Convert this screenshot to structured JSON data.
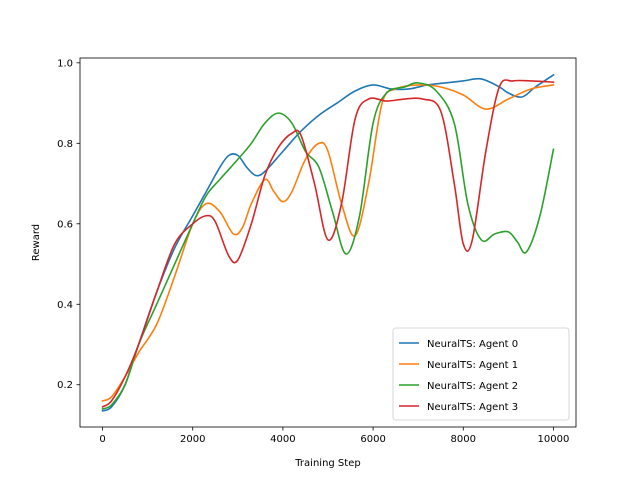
{
  "chart_data": {
    "type": "line",
    "title": "",
    "xlabel": "Training Step",
    "ylabel": "Reward",
    "xlim": [
      -500,
      10500
    ],
    "ylim": [
      0.095,
      1.012
    ],
    "xticks": [
      0,
      2000,
      4000,
      6000,
      8000,
      10000
    ],
    "xtick_labels": [
      "0",
      "2000",
      "4000",
      "6000",
      "8000",
      "10000"
    ],
    "yticks": [
      0.2,
      0.4,
      0.6,
      0.8,
      1.0
    ],
    "ytick_labels": [
      "0.2",
      "0.4",
      "0.6",
      "0.8",
      "1.0"
    ],
    "grid": false,
    "legend_position": "lower-right",
    "series": [
      {
        "name": "NeuralTS: Agent 0",
        "color": "#1f77b4",
        "x": [
          0,
          200,
          500,
          800,
          1200,
          1600,
          2000,
          2300,
          2600,
          2800,
          3000,
          3200,
          3400,
          3600,
          4000,
          4400,
          4800,
          5200,
          5600,
          6000,
          6400,
          6800,
          7200,
          7600,
          8000,
          8400,
          8800,
          9000,
          9300,
          9600,
          10000
        ],
        "y": [
          0.135,
          0.145,
          0.2,
          0.3,
          0.43,
          0.54,
          0.62,
          0.68,
          0.74,
          0.77,
          0.77,
          0.74,
          0.72,
          0.73,
          0.78,
          0.83,
          0.87,
          0.9,
          0.93,
          0.945,
          0.935,
          0.935,
          0.945,
          0.95,
          0.955,
          0.96,
          0.94,
          0.925,
          0.915,
          0.94,
          0.97
        ]
      },
      {
        "name": "NeuralTS: Agent 1",
        "color": "#ff7f0e",
        "x": [
          0,
          200,
          500,
          800,
          1200,
          1600,
          2000,
          2300,
          2600,
          2900,
          3100,
          3300,
          3600,
          3800,
          4000,
          4200,
          4500,
          4800,
          5000,
          5300,
          5600,
          5900,
          6200,
          6500,
          7000,
          7500,
          8000,
          8500,
          9000,
          9500,
          10000
        ],
        "y": [
          0.16,
          0.17,
          0.22,
          0.28,
          0.35,
          0.47,
          0.6,
          0.65,
          0.63,
          0.575,
          0.59,
          0.65,
          0.71,
          0.68,
          0.655,
          0.68,
          0.76,
          0.8,
          0.78,
          0.65,
          0.57,
          0.7,
          0.9,
          0.935,
          0.945,
          0.94,
          0.92,
          0.885,
          0.91,
          0.935,
          0.945
        ]
      },
      {
        "name": "NeuralTS: Agent 2",
        "color": "#2ca02c",
        "x": [
          0,
          200,
          500,
          800,
          1200,
          1600,
          2000,
          2300,
          2600,
          3000,
          3300,
          3600,
          3900,
          4200,
          4500,
          4800,
          5100,
          5400,
          5700,
          6000,
          6300,
          6700,
          7000,
          7400,
          7800,
          8100,
          8400,
          8700,
          9000,
          9200,
          9400,
          9700,
          10000
        ],
        "y": [
          0.14,
          0.15,
          0.2,
          0.3,
          0.4,
          0.5,
          0.6,
          0.67,
          0.71,
          0.76,
          0.8,
          0.85,
          0.875,
          0.85,
          0.78,
          0.74,
          0.63,
          0.525,
          0.62,
          0.85,
          0.925,
          0.94,
          0.95,
          0.93,
          0.85,
          0.65,
          0.56,
          0.575,
          0.58,
          0.555,
          0.53,
          0.62,
          0.785
        ]
      },
      {
        "name": "NeuralTS: Agent 3",
        "color": "#d62728",
        "x": [
          0,
          200,
          500,
          800,
          1200,
          1600,
          2000,
          2300,
          2500,
          2800,
          3000,
          3300,
          3600,
          3900,
          4200,
          4400,
          4700,
          5000,
          5300,
          5600,
          5900,
          6300,
          6700,
          7100,
          7500,
          7800,
          8000,
          8200,
          8500,
          8800,
          9100,
          9500,
          10000
        ],
        "y": [
          0.145,
          0.16,
          0.22,
          0.3,
          0.43,
          0.55,
          0.6,
          0.62,
          0.605,
          0.52,
          0.51,
          0.6,
          0.72,
          0.79,
          0.825,
          0.82,
          0.7,
          0.56,
          0.65,
          0.86,
          0.91,
          0.905,
          0.91,
          0.91,
          0.88,
          0.7,
          0.55,
          0.56,
          0.78,
          0.94,
          0.955,
          0.955,
          0.952
        ]
      }
    ]
  }
}
